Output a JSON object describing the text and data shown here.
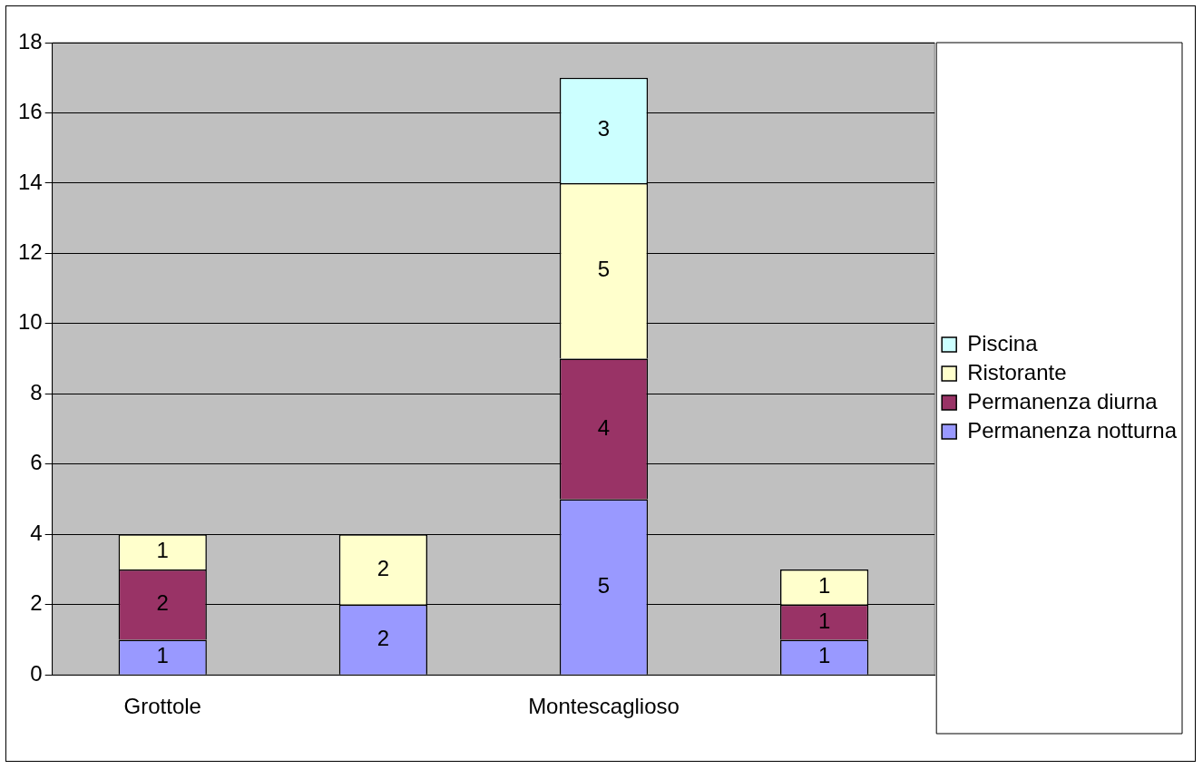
{
  "chart_data": {
    "type": "bar",
    "stacked": true,
    "categories": [
      "Grottole",
      null,
      "Montescaglioso",
      null
    ],
    "series": [
      {
        "name": "Permanenza notturna",
        "color": "#9999ff",
        "values": [
          1,
          2,
          5,
          1
        ]
      },
      {
        "name": "Permanenza diurna",
        "color": "#993366",
        "values": [
          2,
          null,
          4,
          1
        ]
      },
      {
        "name": "Ristorante",
        "color": "#ffffcc",
        "values": [
          1,
          2,
          5,
          1
        ]
      },
      {
        "name": "Piscina",
        "color": "#ccffff",
        "values": [
          null,
          null,
          3,
          null
        ]
      }
    ],
    "ylim": [
      0,
      18
    ],
    "yticks": [
      0,
      2,
      4,
      6,
      8,
      10,
      12,
      14,
      16,
      18
    ],
    "grid": "y",
    "legend": "right",
    "data_labels": true
  }
}
